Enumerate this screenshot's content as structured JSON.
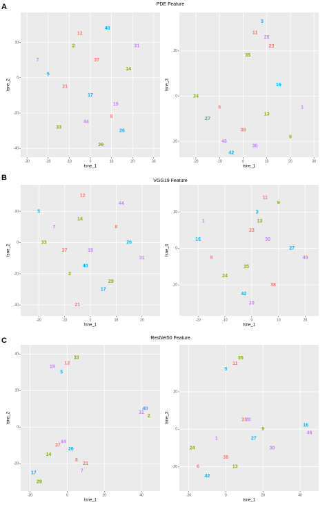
{
  "rows": [
    {
      "letter": "A",
      "title": "PDE Feature"
    },
    {
      "letter": "B",
      "title": "VGG19 Feature"
    },
    {
      "letter": "C",
      "title": "ResNet50 Feature"
    }
  ],
  "chart_data": [
    {
      "type": "scatter",
      "xlabel": "tsne_1",
      "ylabel": "tsne_2",
      "xlim": [
        -33,
        33
      ],
      "ylim": [
        -45,
        37
      ],
      "xticks": [
        -30,
        -20,
        -10,
        0,
        10,
        20,
        30
      ],
      "yticks": [
        -40,
        -20,
        0,
        20
      ],
      "grid": true,
      "series": [
        {
          "color": "#f8766d",
          "x": [
            -5,
            3,
            10,
            -12
          ],
          "values": [
            25,
            10,
            -22,
            -5
          ],
          "labels": [
            "12",
            "37",
            "8",
            "21"
          ]
        },
        {
          "color": "#00b0f6",
          "x": [
            -20,
            8,
            0,
            15
          ],
          "values": [
            2,
            28,
            -10,
            -30
          ],
          "labels": [
            "5",
            "40",
            "17",
            "26"
          ]
        },
        {
          "color": "#7cae00",
          "x": [
            -15,
            18,
            5,
            -8
          ],
          "values": [
            -28,
            5,
            -38,
            18
          ],
          "labels": [
            "33",
            "14",
            "29",
            "2"
          ]
        },
        {
          "color": "#c77cff",
          "x": [
            12,
            -2,
            -25,
            22
          ],
          "values": [
            -15,
            -25,
            10,
            18
          ],
          "labels": [
            "19",
            "44",
            "7",
            "31"
          ]
        }
      ]
    },
    {
      "type": "scatter",
      "xlabel": "tsne_1",
      "ylabel": "tsne_3",
      "xlim": [
        -27,
        32
      ],
      "ylim": [
        -27,
        37
      ],
      "xticks": [
        -20,
        -10,
        0,
        10,
        20,
        30
      ],
      "yticks": [
        -20,
        0,
        20
      ],
      "grid": true,
      "series": [
        {
          "color": "#f8766d",
          "x": [
            5,
            12,
            -10,
            0
          ],
          "values": [
            28,
            22,
            -5,
            -15
          ],
          "labels": [
            "11",
            "23",
            "6",
            "38"
          ]
        },
        {
          "color": "#00b0f6",
          "x": [
            8,
            -15,
            15,
            -5
          ],
          "values": [
            33,
            -10,
            5,
            -25
          ],
          "labels": [
            "3",
            "27",
            "16",
            "42"
          ]
        },
        {
          "color": "#7cae00",
          "x": [
            2,
            20,
            -20,
            10
          ],
          "values": [
            18,
            -18,
            0,
            -8
          ],
          "labels": [
            "35",
            "9",
            "24",
            "13"
          ]
        },
        {
          "color": "#c77cff",
          "x": [
            10,
            -8,
            25,
            5
          ],
          "values": [
            26,
            -20,
            -5,
            -22
          ],
          "labels": [
            "20",
            "46",
            "1",
            "30"
          ]
        }
      ]
    },
    {
      "type": "scatter",
      "xlabel": "tsne_1",
      "ylabel": "tsne_2",
      "xlim": [
        -27,
        27
      ],
      "ylim": [
        -47,
        37
      ],
      "xticks": [
        -20,
        -10,
        0,
        10,
        20
      ],
      "yticks": [
        -40,
        -20,
        0,
        20
      ],
      "grid": true,
      "series": [
        {
          "color": "#f8766d",
          "x": [
            -3,
            -10,
            10,
            -5
          ],
          "values": [
            30,
            -5,
            10,
            -40
          ],
          "labels": [
            "12",
            "37",
            "8",
            "21"
          ]
        },
        {
          "color": "#00b0f6",
          "x": [
            -20,
            -2,
            5,
            15
          ],
          "values": [
            20,
            -15,
            -30,
            0
          ],
          "labels": [
            "5",
            "40",
            "17",
            "26"
          ]
        },
        {
          "color": "#7cae00",
          "x": [
            -18,
            -4,
            8,
            -8
          ],
          "values": [
            0,
            15,
            -25,
            -20
          ],
          "labels": [
            "33",
            "14",
            "29",
            "2"
          ]
        },
        {
          "color": "#c77cff",
          "x": [
            0,
            12,
            -14,
            20
          ],
          "values": [
            -5,
            25,
            10,
            -10
          ],
          "labels": [
            "19",
            "44",
            "7",
            "31"
          ]
        }
      ]
    },
    {
      "type": "scatter",
      "xlabel": "tsne_1",
      "ylabel": "tsne_3",
      "xlim": [
        -27,
        25
      ],
      "ylim": [
        -37,
        35
      ],
      "xticks": [
        -20,
        -10,
        0,
        10,
        20
      ],
      "yticks": [
        -20,
        0,
        20
      ],
      "grid": true,
      "series": [
        {
          "color": "#f8766d",
          "x": [
            5,
            0,
            -15,
            8
          ],
          "values": [
            28,
            10,
            -5,
            -20
          ],
          "labels": [
            "11",
            "23",
            "6",
            "38"
          ]
        },
        {
          "color": "#00b0f6",
          "x": [
            2,
            15,
            -20,
            -3
          ],
          "values": [
            20,
            0,
            5,
            -25
          ],
          "labels": [
            "3",
            "27",
            "16",
            "42"
          ]
        },
        {
          "color": "#7cae00",
          "x": [
            -2,
            10,
            -10,
            3
          ],
          "values": [
            -10,
            25,
            -15,
            15
          ],
          "labels": [
            "35",
            "9",
            "24",
            "13"
          ]
        },
        {
          "color": "#c77cff",
          "x": [
            0,
            20,
            -18,
            6
          ],
          "values": [
            -30,
            -5,
            15,
            5
          ],
          "labels": [
            "20",
            "46",
            "1",
            "30"
          ]
        }
      ]
    },
    {
      "type": "scatter",
      "xlabel": "tsne_1",
      "ylabel": "tsne_2",
      "xlim": [
        -25,
        50
      ],
      "ylim": [
        -35,
        45
      ],
      "xticks": [
        -20,
        0,
        20,
        40
      ],
      "yticks": [
        -20,
        0,
        20,
        40
      ],
      "grid": true,
      "series": [
        {
          "color": "#f8766d",
          "x": [
            0,
            -5,
            5,
            10
          ],
          "values": [
            35,
            -10,
            -18,
            -20
          ],
          "labels": [
            "12",
            "37",
            "8",
            "21"
          ]
        },
        {
          "color": "#00b0f6",
          "x": [
            -3,
            42,
            -18,
            2
          ],
          "values": [
            30,
            10,
            -25,
            -12
          ],
          "labels": [
            "5",
            "40",
            "17",
            "26"
          ]
        },
        {
          "color": "#7cae00",
          "x": [
            5,
            -10,
            -15,
            44
          ],
          "values": [
            38,
            -15,
            -30,
            6
          ],
          "labels": [
            "33",
            "14",
            "29",
            "2"
          ]
        },
        {
          "color": "#c77cff",
          "x": [
            -8,
            -2,
            8,
            40
          ],
          "values": [
            33,
            -8,
            -24,
            8
          ],
          "labels": [
            "19",
            "44",
            "7",
            "31"
          ]
        }
      ]
    },
    {
      "type": "scatter",
      "xlabel": "tsne_1",
      "ylabel": "tsne_3",
      "xlim": [
        -25,
        50
      ],
      "ylim": [
        -33,
        45
      ],
      "xticks": [
        -20,
        0,
        20,
        40
      ],
      "yticks": [
        -20,
        0,
        20
      ],
      "grid": true,
      "series": [
        {
          "color": "#f8766d",
          "x": [
            5,
            10,
            -15,
            0
          ],
          "values": [
            35,
            5,
            -20,
            -15
          ],
          "labels": [
            "11",
            "23",
            "6",
            "38"
          ]
        },
        {
          "color": "#00b0f6",
          "x": [
            0,
            15,
            43,
            -10
          ],
          "values": [
            32,
            -5,
            2,
            -25
          ],
          "labels": [
            "3",
            "27",
            "16",
            "42"
          ]
        },
        {
          "color": "#7cae00",
          "x": [
            8,
            20,
            -18,
            5
          ],
          "values": [
            38,
            0,
            -10,
            -20
          ],
          "labels": [
            "35",
            "9",
            "24",
            "13"
          ]
        },
        {
          "color": "#c77cff",
          "x": [
            12,
            45,
            -5,
            25
          ],
          "values": [
            5,
            -2,
            -5,
            -10
          ],
          "labels": [
            "20",
            "46",
            "1",
            "30"
          ]
        }
      ]
    }
  ]
}
